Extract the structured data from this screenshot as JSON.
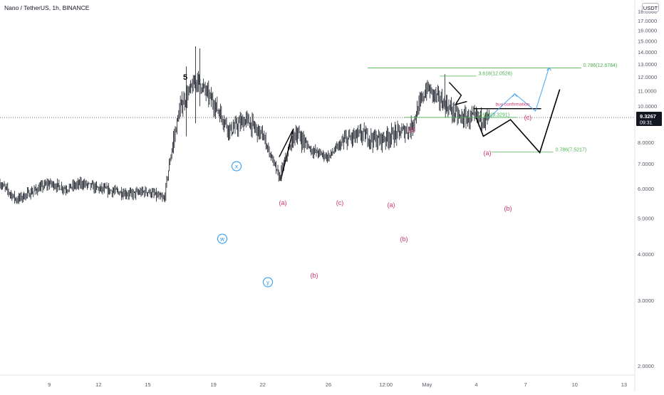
{
  "header": {
    "symbol": "Nano / TetherUS",
    "interval": "1h",
    "exchange": "BINANCE",
    "currency_button": "USDT"
  },
  "colors": {
    "background": "#ffffff",
    "candles": "#131722",
    "axis_text": "#555a66",
    "price_label_bg": "#131722",
    "price_label_text": "#ffffff",
    "count_red": "#d6336c",
    "count_blue": "#2196f3",
    "fib_green": "#4caf50",
    "projection": "#000000",
    "projection_alt": "#42a5f5"
  },
  "price_scale": {
    "ticks": [
      "18.0000",
      "17.0000",
      "16.0000",
      "15.0000",
      "14.0000",
      "13.0000",
      "12.0000",
      "11.0000",
      "10.0000",
      "9.0000",
      "8.0000",
      "7.0000",
      "6.0000",
      "5.0000",
      "4.0000",
      "3.0000",
      "2.0000"
    ],
    "current_price": "9.3267",
    "countdown": "09:31"
  },
  "time_scale": {
    "ticks": [
      "9",
      "12",
      "15",
      "19",
      "22",
      "26",
      "12:00",
      "May",
      "4",
      "7",
      "10",
      "13"
    ]
  },
  "chart_data": {
    "type": "candlestick",
    "symbol": "Nano / TetherUS",
    "timeframe": "1h",
    "exchange": "BINANCE",
    "ylim": [
      1.6,
      18.3
    ],
    "y_scale": "log",
    "x_ticks": [
      "9",
      "12",
      "15",
      "19",
      "22",
      "26",
      "12:00",
      "May",
      "4",
      "7",
      "10",
      "13"
    ],
    "price_path_day_close": [
      {
        "day": "Apr 6",
        "price": 6.2
      },
      {
        "day": "Apr 7",
        "price": 5.6
      },
      {
        "day": "Apr 8",
        "price": 5.9
      },
      {
        "day": "Apr 9",
        "price": 6.2
      },
      {
        "day": "Apr 10",
        "price": 6.0
      },
      {
        "day": "Apr 11",
        "price": 6.2
      },
      {
        "day": "Apr 12",
        "price": 6.0
      },
      {
        "day": "Apr 13",
        "price": 5.9
      },
      {
        "day": "Apr 14",
        "price": 5.8
      },
      {
        "day": "Apr 15",
        "price": 5.9
      },
      {
        "day": "Apr 16",
        "price": 5.6
      },
      {
        "day": "Apr 17",
        "price": 10.0
      },
      {
        "day": "Apr 18",
        "price": 11.8
      },
      {
        "day": "Apr 19",
        "price": 10.2
      },
      {
        "day": "Apr 20",
        "price": 8.6
      },
      {
        "day": "Apr 21",
        "price": 9.2
      },
      {
        "day": "Apr 22",
        "price": 8.3
      },
      {
        "day": "Apr 23",
        "price": 6.4
      },
      {
        "day": "Apr 24",
        "price": 8.5
      },
      {
        "day": "Apr 25",
        "price": 7.6
      },
      {
        "day": "Apr 26",
        "price": 7.3
      },
      {
        "day": "Apr 27",
        "price": 8.1
      },
      {
        "day": "Apr 28",
        "price": 8.4
      },
      {
        "day": "Apr 29",
        "price": 8.1
      },
      {
        "day": "Apr 30",
        "price": 8.4
      },
      {
        "day": "May 1",
        "price": 8.7
      },
      {
        "day": "May 2",
        "price": 11.2
      },
      {
        "day": "May 3",
        "price": 10.2
      },
      {
        "day": "May 4",
        "price": 9.3
      }
    ],
    "last_price": 9.3267,
    "fib_levels": [
      {
        "label": "0.786(12.6784)",
        "price": 12.6784
      },
      {
        "label": "3.618(12.0526)",
        "price": 12.0526
      },
      {
        "label": "0.618(9.3291)",
        "price": 9.3291
      },
      {
        "label": "0.786(7.5217)",
        "price": 7.5217
      }
    ],
    "annotations": [
      {
        "text": "buy confirmation",
        "price": 9.85
      },
      {
        "text": "5",
        "day": "Apr 18",
        "price": 15.4
      },
      {
        "text": "x",
        "day": "Apr 21",
        "price": 11.0,
        "style": "circled"
      },
      {
        "text": "w",
        "day": "Apr 20",
        "price": 8.0,
        "style": "circled"
      },
      {
        "text": "y",
        "day": "Apr 23",
        "price": 5.8,
        "style": "circled"
      },
      {
        "text": "(a)",
        "day": "Apr 24",
        "price": 9.3
      },
      {
        "text": "(b)",
        "day": "Apr 26",
        "price": 6.2
      },
      {
        "text": "(c)",
        "day": "Apr 29",
        "price": 9.3
      },
      {
        "text": "(a)",
        "day": "May 1",
        "price": 9.2
      },
      {
        "text": "(b)",
        "day": "May 1",
        "price": 7.8
      },
      {
        "text": "(c)",
        "day": "May 2",
        "price": 12.9
      },
      {
        "text": "(a)",
        "day": "May 6",
        "price": 11.6
      },
      {
        "text": "(b)",
        "day": "May 7",
        "price": 9.0
      },
      {
        "text": "(c)",
        "day": "May 8",
        "price": 13.8
      }
    ],
    "projection_path": [
      {
        "day": "May 4",
        "price": 9.3
      },
      {
        "day": "May 4",
        "price": 8.3
      },
      {
        "day": "May 6",
        "price": 9.2
      },
      {
        "day": "May 7",
        "price": 7.5
      },
      {
        "day": "May 8",
        "price": 11.1
      }
    ],
    "alternate_path": [
      {
        "day": "May 4",
        "price": 9.3
      },
      {
        "day": "May 6",
        "price": 10.8
      },
      {
        "day": "May 7",
        "price": 9.7
      },
      {
        "day": "May 8",
        "price": 12.7
      }
    ]
  }
}
